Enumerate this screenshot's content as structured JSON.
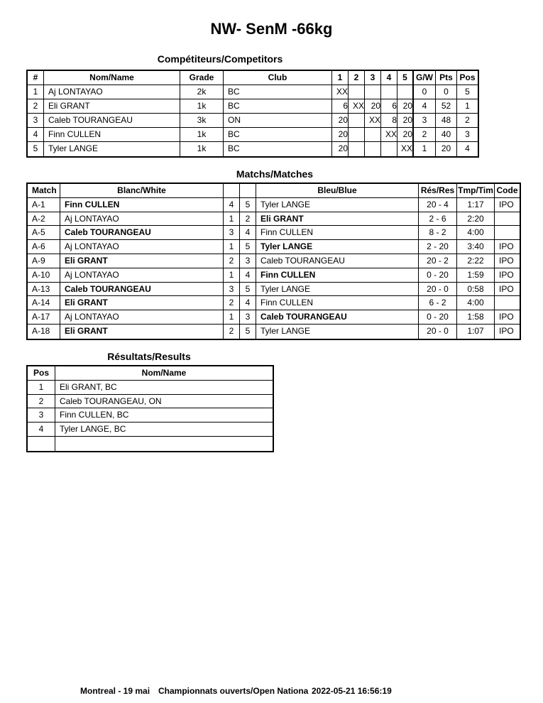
{
  "title": "NW- SenM -66kg",
  "competitors": {
    "heading": "Compétiteurs/Competitors",
    "columns": [
      "#",
      "Nom/Name",
      "Grade",
      "Club",
      "1",
      "2",
      "3",
      "4",
      "5",
      "G/W",
      "Pts",
      "Pos"
    ],
    "rows": [
      [
        1,
        "Aj LONTAYAO",
        "2k",
        "BC",
        "XX",
        null,
        null,
        null,
        null,
        0,
        0,
        5
      ],
      [
        2,
        "Eli GRANT",
        "1k",
        "BC",
        6,
        "XX",
        20,
        6,
        20,
        4,
        52,
        1
      ],
      [
        3,
        "Caleb TOURANGEAU",
        "3k",
        "ON",
        20,
        null,
        "XX",
        8,
        20,
        3,
        48,
        2
      ],
      [
        4,
        "Finn CULLEN",
        "1k",
        "BC",
        20,
        null,
        null,
        "XX",
        20,
        2,
        40,
        3
      ],
      [
        5,
        "Tyler LANGE",
        "1k",
        "BC",
        20,
        null,
        null,
        null,
        "XX",
        1,
        20,
        4
      ]
    ]
  },
  "matches": {
    "heading": "Matchs/Matches",
    "columns": [
      "Match",
      "Blanc/White",
      "Bleu/Blue",
      "Rés/Res",
      "Tmp/Tim",
      "Code"
    ],
    "rows": [
      {
        "id": "A-1",
        "white": "Finn CULLEN",
        "white_no": 4,
        "blue_no": 5,
        "blue": "Tyler LANGE",
        "result": "20 - 4",
        "time": "1:17",
        "code": "IPO",
        "winner": "white"
      },
      {
        "id": "A-2",
        "white": "Aj LONTAYAO",
        "white_no": 1,
        "blue_no": 2,
        "blue": "Eli GRANT",
        "result": "2 - 6",
        "time": "2:20",
        "code": null,
        "winner": "blue"
      },
      {
        "id": "A-5",
        "white": "Caleb TOURANGEAU",
        "white_no": 3,
        "blue_no": 4,
        "blue": "Finn CULLEN",
        "result": "8 - 2",
        "time": "4:00",
        "code": null,
        "winner": "white"
      },
      {
        "id": "A-6",
        "white": "Aj LONTAYAO",
        "white_no": 1,
        "blue_no": 5,
        "blue": "Tyler LANGE",
        "result": "2 - 20",
        "time": "3:40",
        "code": "IPO",
        "winner": "blue"
      },
      {
        "id": "A-9",
        "white": "Eli GRANT",
        "white_no": 2,
        "blue_no": 3,
        "blue": "Caleb TOURANGEAU",
        "result": "20 - 2",
        "time": "2:22",
        "code": "IPO",
        "winner": "white"
      },
      {
        "id": "A-10",
        "white": "Aj LONTAYAO",
        "white_no": 1,
        "blue_no": 4,
        "blue": "Finn CULLEN",
        "result": "0 - 20",
        "time": "1:59",
        "code": "IPO",
        "winner": "blue"
      },
      {
        "id": "A-13",
        "white": "Caleb TOURANGEAU",
        "white_no": 3,
        "blue_no": 5,
        "blue": "Tyler LANGE",
        "result": "20 - 0",
        "time": "0:58",
        "code": "IPO",
        "winner": "white"
      },
      {
        "id": "A-14",
        "white": "Eli GRANT",
        "white_no": 2,
        "blue_no": 4,
        "blue": "Finn CULLEN",
        "result": "6 - 2",
        "time": "4:00",
        "code": null,
        "winner": "white"
      },
      {
        "id": "A-17",
        "white": "Aj LONTAYAO",
        "white_no": 1,
        "blue_no": 3,
        "blue": "Caleb TOURANGEAU",
        "result": "0 - 20",
        "time": "1:58",
        "code": "IPO",
        "winner": "blue"
      },
      {
        "id": "A-18",
        "white": "Eli GRANT",
        "white_no": 2,
        "blue_no": 5,
        "blue": "Tyler LANGE",
        "result": "20 - 0",
        "time": "1:07",
        "code": "IPO",
        "winner": "white"
      }
    ]
  },
  "results": {
    "heading": "Résultats/Results",
    "columns": [
      "Pos",
      "Nom/Name"
    ],
    "rows": [
      [
        1,
        "Eli GRANT, BC"
      ],
      [
        2,
        "Caleb TOURANGEAU, ON"
      ],
      [
        3,
        "Finn CULLEN, BC"
      ],
      [
        4,
        "Tyler LANGE, BC"
      ]
    ]
  },
  "footer": {
    "place": "Montreal - 19 mai",
    "event": "Championnats ouverts/Open Nationa",
    "timestamp": "2022-05-21 16:56:19"
  }
}
